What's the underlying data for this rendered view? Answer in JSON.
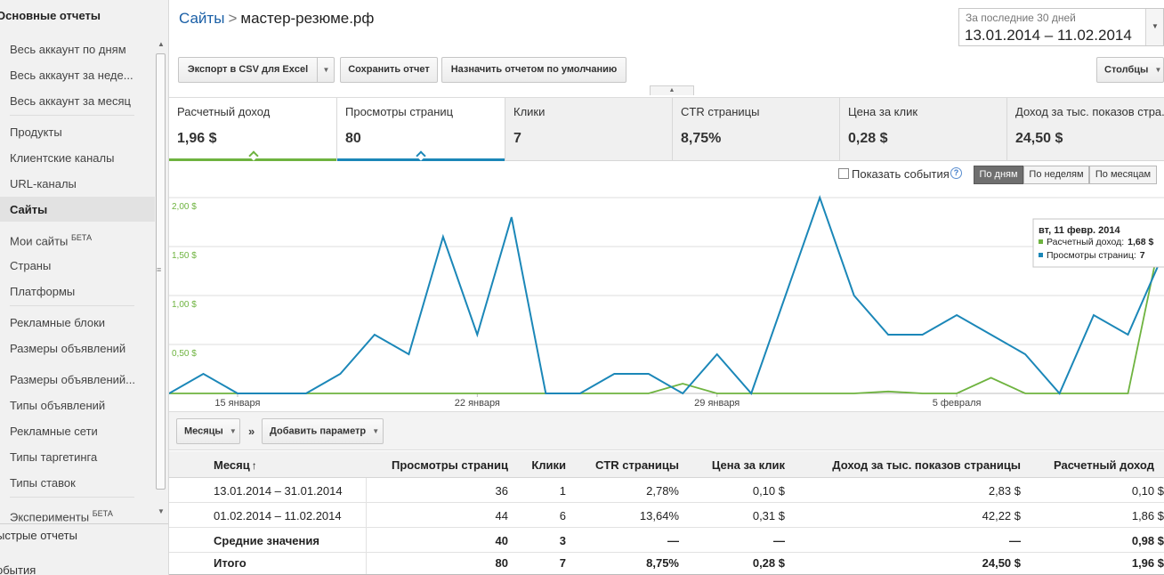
{
  "sidebar": {
    "header": "Основные отчеты",
    "items": [
      {
        "label": "Весь аккаунт по дням"
      },
      {
        "label": "Весь аккаунт за неде..."
      },
      {
        "label": "Весь аккаунт за месяц"
      },
      {
        "label": "Продукты"
      },
      {
        "label": "Клиентские каналы"
      },
      {
        "label": "URL-каналы"
      },
      {
        "label": "Сайты"
      },
      {
        "label": "Мои сайты",
        "badge": "БЕТА"
      },
      {
        "label": "Страны"
      },
      {
        "label": "Платформы"
      },
      {
        "label": "Рекламные блоки"
      },
      {
        "label": "Размеры объявлений"
      },
      {
        "label": "Размеры объявлений..."
      },
      {
        "label": "Типы объявлений"
      },
      {
        "label": "Рекламные сети"
      },
      {
        "label": "Типы таргетинга"
      },
      {
        "label": "Типы ставок"
      },
      {
        "label": "Эксперименты",
        "badge": "БЕТА"
      }
    ],
    "bottom": [
      "ыстрые отчеты",
      "обытия"
    ]
  },
  "breadcrumb": {
    "root": "Сайты",
    "separator": ">",
    "current": "мастер-резюме.рф"
  },
  "daterange": {
    "label": "За последние 30 дней",
    "value": "13.01.2014 – 11.02.2014"
  },
  "toolbar": {
    "export": "Экспорт в CSV для Excel",
    "save": "Сохранить отчет",
    "default": "Назначить отчетом по умолчанию",
    "columns": "Столбцы"
  },
  "tabs": [
    {
      "label": "Расчетный доход",
      "value": "1,96 $"
    },
    {
      "label": "Просмотры страниц",
      "value": "80"
    },
    {
      "label": "Клики",
      "value": "7"
    },
    {
      "label": "CTR страницы",
      "value": "8,75%"
    },
    {
      "label": "Цена за клик",
      "value": "0,28 $"
    },
    {
      "label": "Доход за тыс. показов стра...",
      "value": "24,50 $"
    }
  ],
  "colors": {
    "revenue": "#6eb33f",
    "pageviews": "#1b87b8"
  },
  "chart_controls": {
    "show_events": "Показать события",
    "help": "?",
    "granularity": [
      "По дням",
      "По неделям",
      "По месяцам"
    ]
  },
  "chart_data": {
    "type": "line",
    "x": [
      "13.01",
      "14.01",
      "15.01",
      "16.01",
      "17.01",
      "18.01",
      "19.01",
      "20.01",
      "21.01",
      "22.01",
      "23.01",
      "24.01",
      "25.01",
      "26.01",
      "27.01",
      "28.01",
      "29.01",
      "30.01",
      "31.01",
      "01.02",
      "02.02",
      "03.02",
      "04.02",
      "05.02",
      "06.02",
      "07.02",
      "08.02",
      "09.02",
      "10.02",
      "11.02"
    ],
    "x_tick_labels": [
      "15 января",
      "22 января",
      "29 января",
      "5 февраля"
    ],
    "y_tick_labels": [
      "2,00 $",
      "1,50 $",
      "1,00 $",
      "0,50 $"
    ],
    "ylim_revenue": [
      0,
      2.0
    ],
    "series": [
      {
        "name": "Расчетный доход",
        "axis": "left",
        "values": [
          0,
          0,
          0,
          0,
          0,
          0,
          0,
          0,
          0,
          0,
          0,
          0,
          0,
          0,
          0,
          0.1,
          0,
          0,
          0,
          0,
          0,
          0.02,
          0,
          0,
          0.16,
          0,
          0,
          0,
          0,
          1.68
        ]
      },
      {
        "name": "Просмотры страниц",
        "axis": "right",
        "values": [
          0,
          1,
          0,
          0,
          0,
          1,
          3,
          2,
          8,
          3,
          9,
          0,
          0,
          1,
          1,
          0,
          2,
          0,
          5,
          10,
          5,
          3,
          3,
          4,
          3,
          2,
          0,
          4,
          3,
          7
        ]
      }
    ],
    "tooltip": {
      "title": "вт, 11 февр. 2014",
      "rows": [
        {
          "label": "Расчетный доход:",
          "value": "1,68 $"
        },
        {
          "label": "Просмотры страниц:",
          "value": "7"
        }
      ]
    },
    "grid": true
  },
  "params": {
    "dimension": "Месяцы",
    "chevrons": "»",
    "add": "Добавить параметр"
  },
  "table": {
    "headers": [
      "Месяц",
      "Просмотры страниц",
      "Клики",
      "CTR страницы",
      "Цена за клик",
      "Доход за тыс. показов страницы",
      "Расчетный доход"
    ],
    "sort_indicator": "↑",
    "rows": [
      [
        "13.01.2014 – 31.01.2014",
        "36",
        "1",
        "2,78%",
        "0,10 $",
        "2,83 $",
        "0,10 $"
      ],
      [
        "01.02.2014 – 11.02.2014",
        "44",
        "6",
        "13,64%",
        "0,31 $",
        "42,22 $",
        "1,86 $"
      ]
    ],
    "average": [
      "Средние значения",
      "40",
      "3",
      "—",
      "—",
      "—",
      "0,98 $"
    ],
    "total": [
      "Итого",
      "80",
      "7",
      "8,75%",
      "0,28 $",
      "24,50 $",
      "1,96 $"
    ]
  }
}
